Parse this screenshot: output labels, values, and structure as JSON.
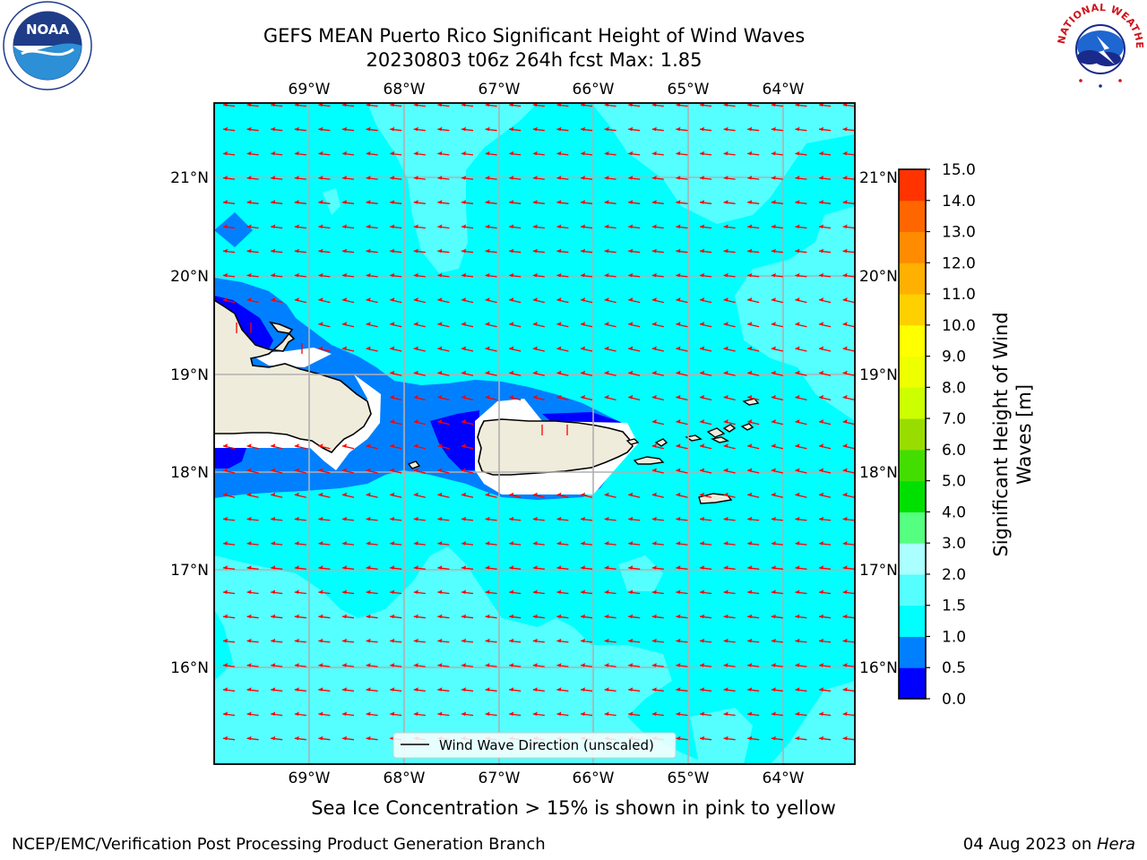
{
  "title": {
    "line1": "GEFS MEAN Puerto Rico Significant Height of Wind Waves",
    "line2": "20230803 t06z 264h fcst   Max: 1.85"
  },
  "logos": {
    "left": {
      "name": "noaa-logo",
      "text": "NOAA",
      "ring_text": "NATIONAL OCEANIC AND ATMOSPHERIC ADMINISTRATION · U.S. DEPARTMENT OF COMMERCE"
    },
    "right": {
      "name": "nws-logo",
      "ring_text": "NATIONAL WEATHER SERVICE"
    }
  },
  "map": {
    "lon_labels": [
      "69°W",
      "68°W",
      "67°W",
      "66°W",
      "65°W",
      "64°W"
    ],
    "lat_labels": [
      "21°N",
      "20°N",
      "19°N",
      "18°N",
      "17°N",
      "16°N"
    ],
    "legend_label": "Wind Wave Direction (unscaled)",
    "colors": {
      "ocean_1_0_1_5": "#00ffff",
      "ocean_1_5_2_0": "#55ffff",
      "ocean_0_5_1_0": "#0080ff",
      "ocean_0_0_0_5": "#0000ff",
      "land": "#efecdc",
      "arrow": "#ff0000"
    }
  },
  "colorbar": {
    "label": "Significant Height of Wind Waves [m]",
    "label_line1": "Significant Height of Wind",
    "label_line2": "Waves [m]",
    "ticks": [
      "15.0",
      "14.0",
      "13.0",
      "12.0",
      "11.0",
      "10.0",
      "9.0",
      "8.0",
      "7.0",
      "6.0",
      "5.0",
      "4.0",
      "3.0",
      "2.0",
      "1.5",
      "1.0",
      "0.5",
      "0.0"
    ],
    "colors": [
      "#0000ff",
      "#0080ff",
      "#00ffff",
      "#55ffff",
      "#aaffff",
      "#55ff80",
      "#00e000",
      "#44dd00",
      "#99dd00",
      "#ccff00",
      "#eeff00",
      "#ffff00",
      "#ffd000",
      "#ffb000",
      "#ff8c00",
      "#ff6600",
      "#ff3300",
      "#ff0000"
    ]
  },
  "ice_note": "Sea Ice Concentration > 15% is shown in pink to yellow",
  "footer": {
    "left": "NCEP/EMC/Verification Post Processing Product Generation Branch",
    "right_prefix": "04 Aug 2023 on ",
    "right_host": "Hera"
  }
}
